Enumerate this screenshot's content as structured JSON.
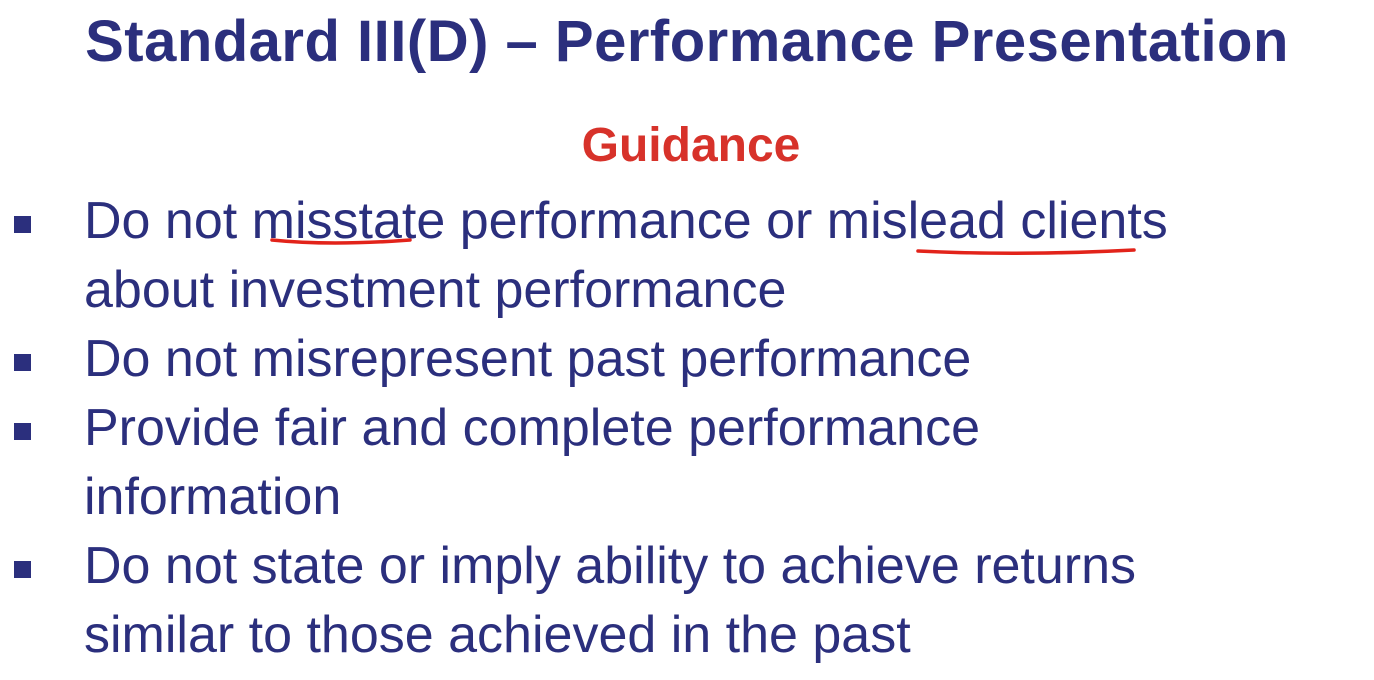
{
  "slide": {
    "title": "Standard III(D) – Performance Presentation",
    "subtitle": "Guidance",
    "bullets": [
      {
        "lines": [
          "Do not misstate performance or mislead clients",
          "about investment performance"
        ]
      },
      {
        "lines": [
          "Do not misrepresent past performance"
        ]
      },
      {
        "lines": [
          "Provide fair and complete performance",
          "information"
        ]
      },
      {
        "lines": [
          "Do not state or imply ability to achieve returns",
          "similar to those achieved in the past"
        ]
      }
    ]
  },
  "colors": {
    "text": "#2b2f7d",
    "accent": "#d7322a",
    "annotation": "#e2231a"
  },
  "icons": {
    "bullet": "square-bullet-icon"
  }
}
